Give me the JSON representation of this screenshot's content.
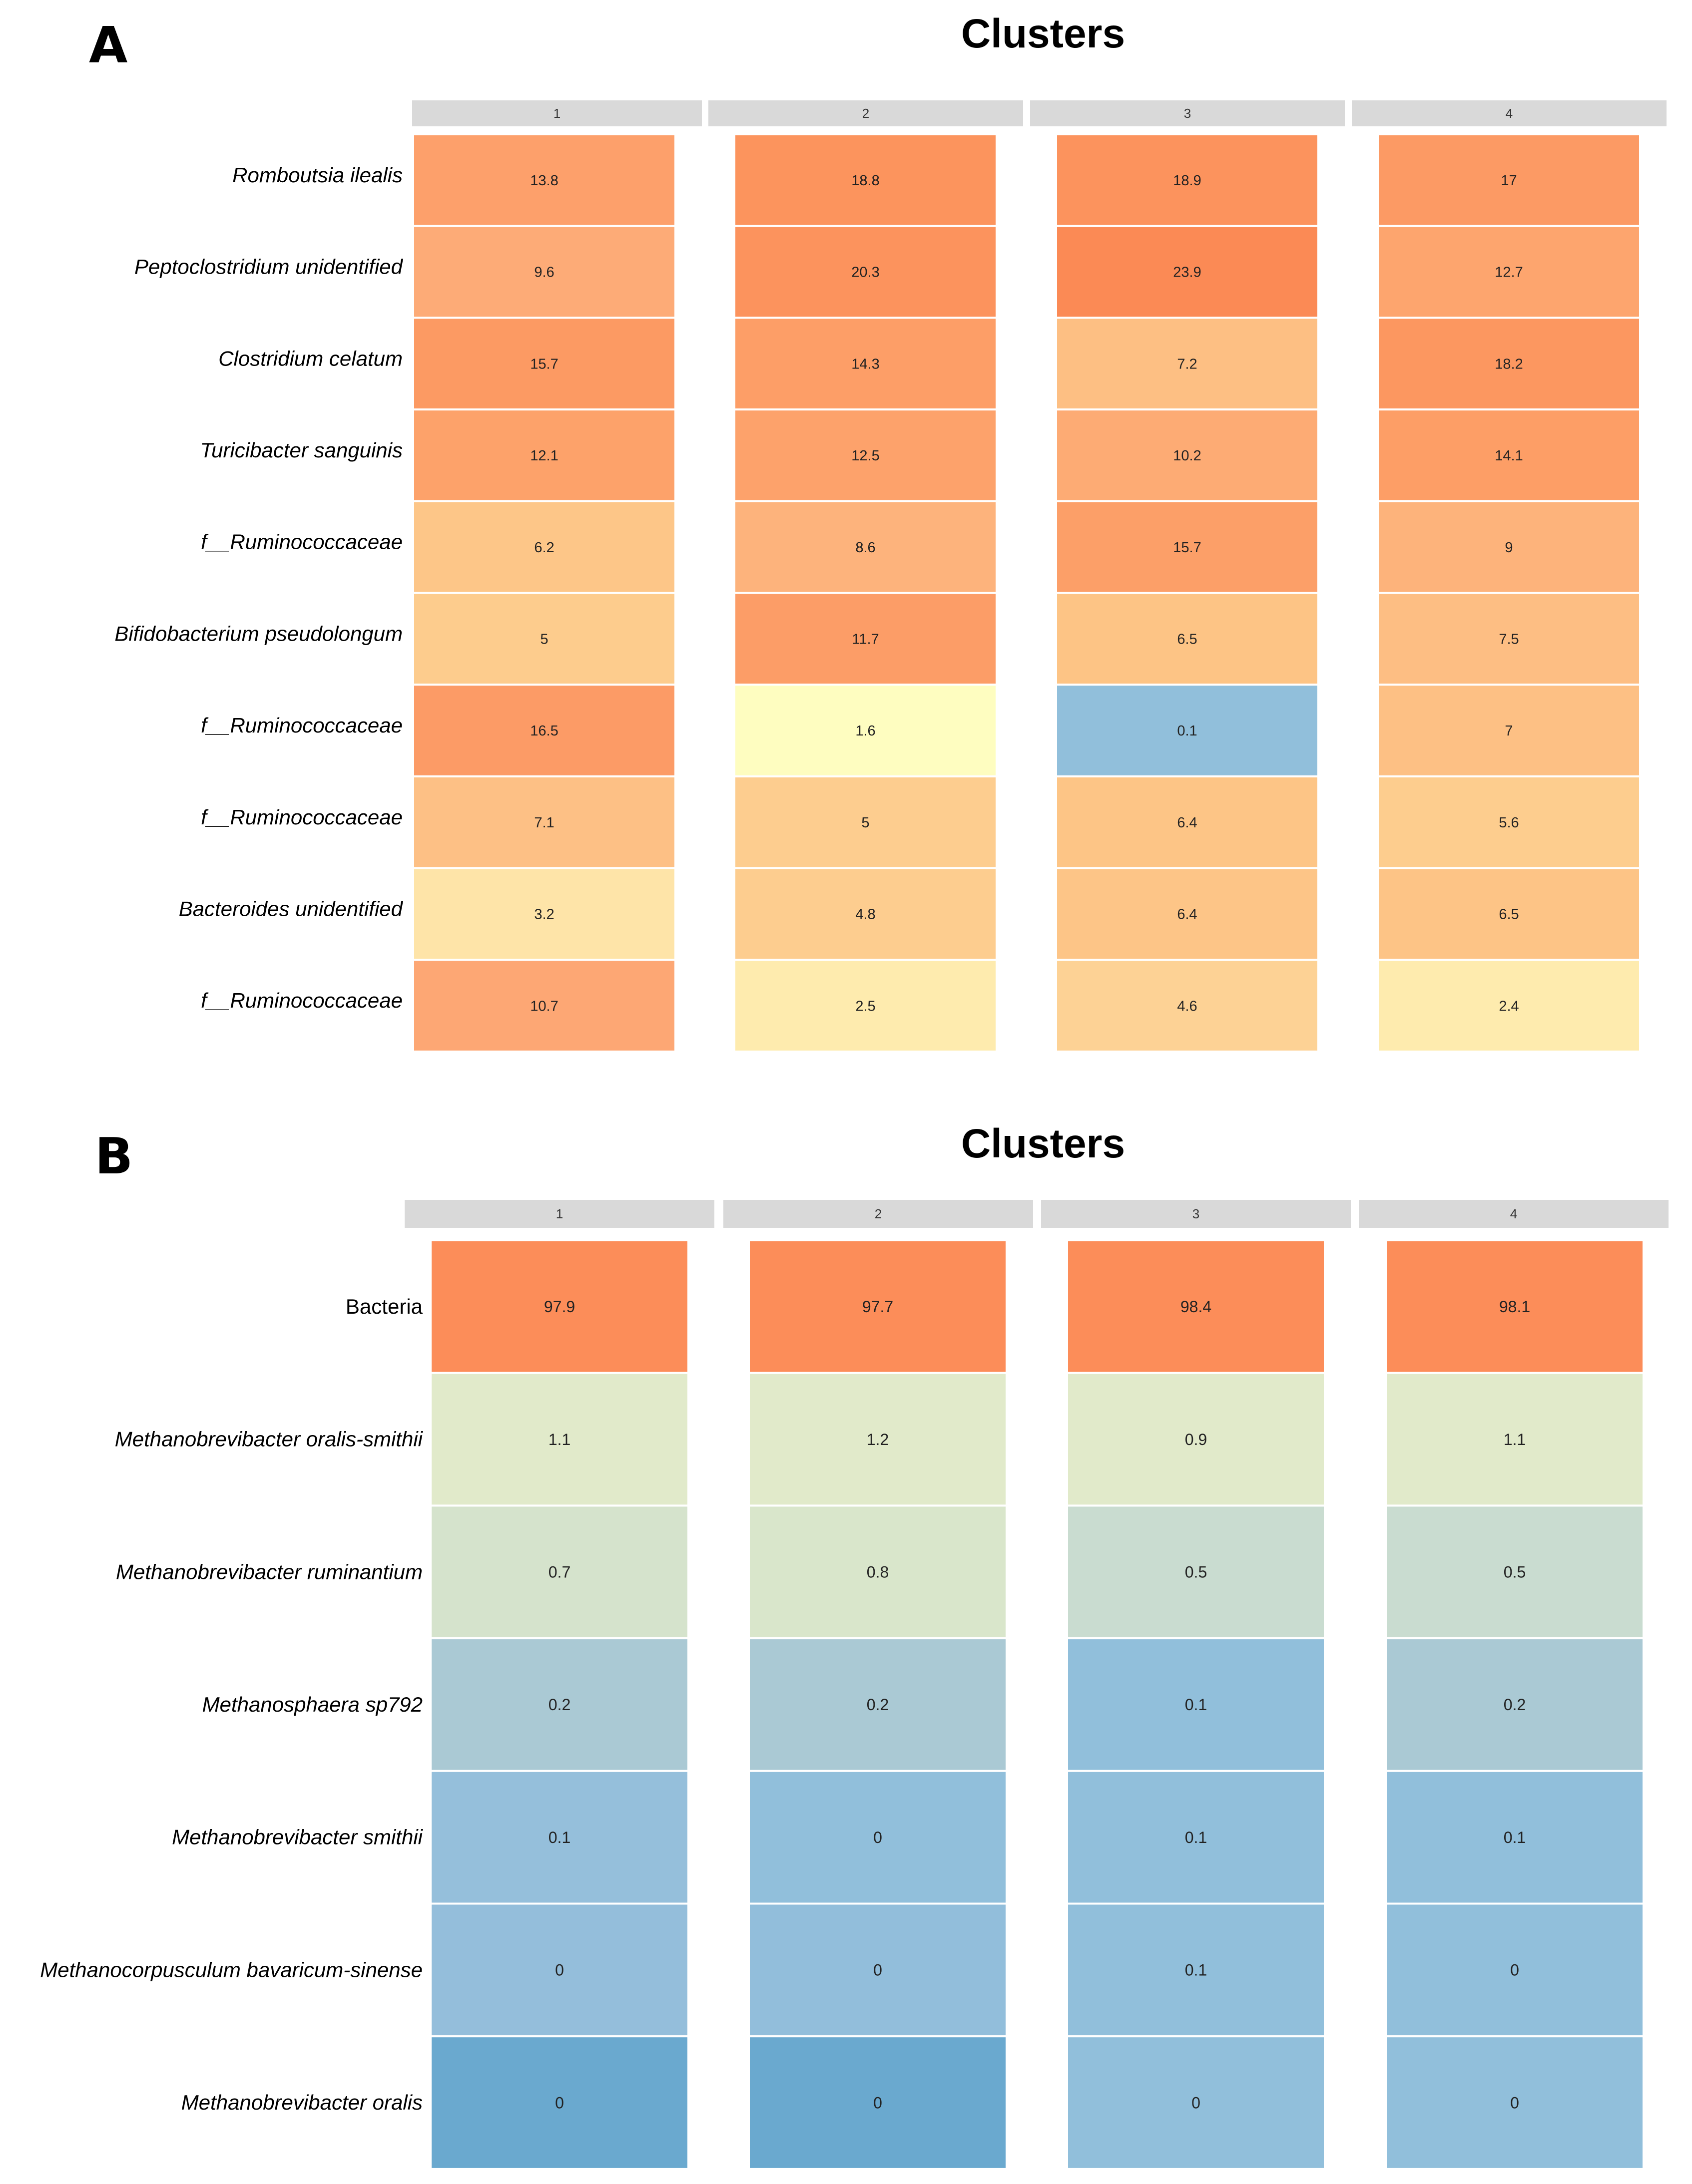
{
  "chart_data": [
    {
      "panel": "A",
      "type": "heatmap",
      "title": "Clusters",
      "columns": [
        "1",
        "2",
        "3",
        "4"
      ],
      "rows": [
        {
          "label": "Romboutsia ilealis",
          "italic": true,
          "values": [
            13.8,
            18.8,
            18.9,
            17
          ],
          "colors": [
            "#fda06b",
            "#fc945d",
            "#fc935d",
            "#fc9a64"
          ]
        },
        {
          "label": "Peptoclostridium unidentified",
          "italic": true,
          "values": [
            9.6,
            20.3,
            23.9,
            12.7
          ],
          "colors": [
            "#fdab77",
            "#fc935d",
            "#fb8a55",
            "#fda56e"
          ]
        },
        {
          "label": "Clostridium celatum",
          "italic": true,
          "values": [
            15.7,
            14.3,
            7.2,
            18.2
          ],
          "colors": [
            "#fc9a63",
            "#fd9e67",
            "#fdbf83",
            "#fc9760"
          ]
        },
        {
          "label": "Turicibacter sanguinis",
          "italic": true,
          "values": [
            12.1,
            12.5,
            10.2,
            14.1
          ],
          "colors": [
            "#fda26a",
            "#fda26b",
            "#fdab74",
            "#fd9e66"
          ]
        },
        {
          "label": "f__Ruminococcaceae",
          "italic": true,
          "values": [
            6.2,
            8.6,
            15.7,
            9
          ],
          "colors": [
            "#fdc688",
            "#fdb37c",
            "#fc9f68",
            "#fdb37b"
          ]
        },
        {
          "label": "Bifidobacterium pseudolongum",
          "italic": true,
          "values": [
            5,
            11.7,
            6.5,
            7.5
          ],
          "colors": [
            "#fdcc8d",
            "#fc9d67",
            "#fdc485",
            "#fdbe83"
          ]
        },
        {
          "label": "f__Ruminococcaceae",
          "italic": true,
          "values": [
            16.5,
            1.6,
            0.1,
            7
          ],
          "colors": [
            "#fc9b66",
            "#fefdc0",
            "#91bfdb",
            "#fdc084"
          ]
        },
        {
          "label": "f__Ruminococcaceae",
          "italic": true,
          "values": [
            7.1,
            5,
            6.4,
            5.6
          ],
          "colors": [
            "#fdc085",
            "#fdcd8f",
            "#fdc586",
            "#fdcd8e"
          ]
        },
        {
          "label": "Bacteroides unidentified",
          "italic": true,
          "values": [
            3.2,
            4.8,
            6.4,
            6.5
          ],
          "colors": [
            "#fee4a8",
            "#fdcd8f",
            "#fdc587",
            "#fdc486"
          ]
        },
        {
          "label": "f__Ruminococcaceae",
          "italic": true,
          "values": [
            10.7,
            2.5,
            4.6,
            2.4
          ],
          "colors": [
            "#fda774",
            "#feebae",
            "#fdd295",
            "#feebae"
          ]
        }
      ]
    },
    {
      "panel": "B",
      "type": "heatmap",
      "title": "Clusters",
      "columns": [
        "1",
        "2",
        "3",
        "4"
      ],
      "rows": [
        {
          "label": "Bacteria",
          "italic": false,
          "values": [
            97.9,
            97.7,
            98.4,
            98.1
          ],
          "colors": [
            "#fc8d59",
            "#fc8d59",
            "#fc8d59",
            "#fc8d59"
          ]
        },
        {
          "label": "Methanobrevibacter oralis-smithii",
          "italic": true,
          "values": [
            1.1,
            1.2,
            0.9,
            1.1
          ],
          "colors": [
            "#e1eaca",
            "#e1eaca",
            "#e1eaca",
            "#e1eaca"
          ]
        },
        {
          "label": "Methanobrevibacter ruminantium",
          "italic": true,
          "values": [
            0.7,
            0.8,
            0.5,
            0.5
          ],
          "colors": [
            "#d5e3cc",
            "#d9e6cb",
            "#c9dcd0",
            "#c9dcd0"
          ]
        },
        {
          "label": "Methanosphaera sp792",
          "italic": true,
          "values": [
            0.2,
            0.2,
            0.1,
            0.2
          ],
          "colors": [
            "#aac9d4",
            "#aac9d4",
            "#91bfdb",
            "#aac9d4"
          ]
        },
        {
          "label": "Methanobrevibacter smithii",
          "italic": true,
          "values": [
            0.1,
            0,
            0.1,
            0.1
          ],
          "colors": [
            "#95bfdb",
            "#91bfdb",
            "#91bfdb",
            "#91bfdb"
          ]
        },
        {
          "label": "Methanocorpusculum bavaricum-sinense",
          "italic": true,
          "values": [
            0,
            0,
            0.1,
            0
          ],
          "colors": [
            "#94bedb",
            "#92bedb",
            "#91bfdb",
            "#91bfdb"
          ]
        },
        {
          "label": "Methanobrevibacter oralis",
          "italic": true,
          "values": [
            0,
            0,
            0,
            0
          ],
          "colors": [
            "#6aa9cf",
            "#6aa9cf",
            "#91bfdb",
            "#91bfdb"
          ]
        }
      ]
    }
  ]
}
